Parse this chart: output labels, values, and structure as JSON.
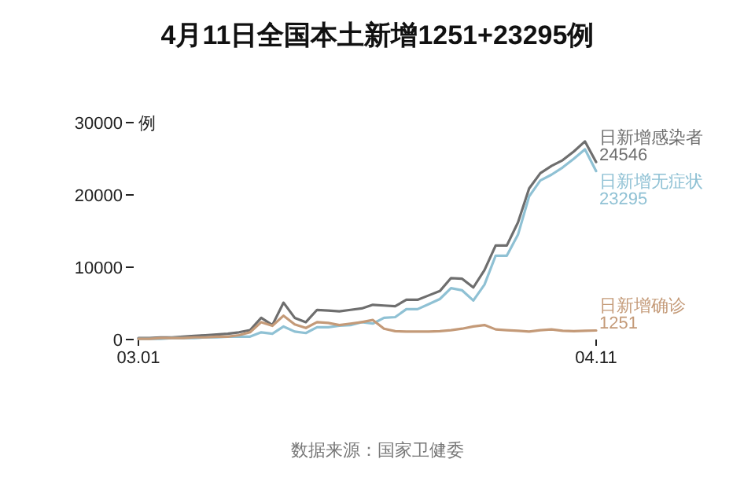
{
  "chart_data": {
    "type": "line",
    "title": "4月11日全国本土新增1251+23295例",
    "ylabel": "例",
    "annotations": [
      "数据来源：国家卫健委"
    ],
    "x": [
      "--03-01",
      "--03-02",
      "--03-03",
      "--03-04",
      "--03-05",
      "--03-06",
      "--03-07",
      "--03-08",
      "--03-09",
      "--03-10",
      "--03-11",
      "--03-12",
      "--03-13",
      "--03-14",
      "--03-15",
      "--03-16",
      "--03-17",
      "--03-18",
      "--03-19",
      "--03-20",
      "--03-21",
      "--03-22",
      "--03-23",
      "--03-24",
      "--03-25",
      "--03-26",
      "--03-27",
      "--03-28",
      "--03-29",
      "--03-30",
      "--03-31",
      "--04-01",
      "--04-02",
      "--04-03",
      "--04-04",
      "--04-05",
      "--04-06",
      "--04-07",
      "--04-08",
      "--04-09",
      "--04-10",
      "--04-11"
    ],
    "xlim": [
      "--03-01",
      "--04-11"
    ],
    "xticks": [
      {
        "value": "--03-01",
        "label": "03.01"
      },
      {
        "value": "--04-11",
        "label": "04.11"
      }
    ],
    "ylim": [
      0,
      30000
    ],
    "yticks": [
      0,
      10000,
      20000,
      30000
    ],
    "grid": false,
    "line_style": "solid",
    "marker": "none",
    "series": [
      {
        "name": "日新增感染者",
        "color": "#6e6e6e",
        "values": [
          200,
          200,
          300,
          300,
          400,
          500,
          600,
          700,
          800,
          1000,
          1300,
          3000,
          2000,
          5100,
          3000,
          2400,
          4100,
          4000,
          3900,
          4100,
          4300,
          4800,
          4700,
          4600,
          5500,
          5500,
          6100,
          6700,
          8500,
          8400,
          7200,
          9600,
          13000,
          13000,
          16200,
          20900,
          23000,
          24000,
          24800,
          26000,
          27400,
          24546
        ],
        "value_labels": [
          null,
          null,
          null,
          null,
          null,
          null,
          null,
          null,
          null,
          null,
          null,
          null,
          null,
          null,
          null,
          null,
          null,
          null,
          null,
          null,
          null,
          null,
          null,
          null,
          null,
          null,
          null,
          null,
          null,
          null,
          null,
          null,
          null,
          null,
          null,
          null,
          null,
          null,
          null,
          null,
          null,
          "24546"
        ]
      },
      {
        "name": "日新增无症状",
        "color": "#8fc1d4",
        "values": [
          100,
          100,
          100,
          200,
          200,
          200,
          300,
          300,
          400,
          400,
          400,
          1000,
          800,
          1800,
          1100,
          900,
          1700,
          1700,
          1900,
          2000,
          2400,
          2200,
          3000,
          3100,
          4200,
          4200,
          4900,
          5600,
          7100,
          6800,
          5400,
          7600,
          11600,
          11600,
          14500,
          19800,
          22000,
          22800,
          23800,
          25000,
          26300,
          23295
        ],
        "value_labels": [
          null,
          null,
          null,
          null,
          null,
          null,
          null,
          null,
          null,
          null,
          null,
          null,
          null,
          null,
          null,
          null,
          null,
          null,
          null,
          null,
          null,
          null,
          null,
          null,
          null,
          null,
          null,
          null,
          null,
          null,
          null,
          null,
          null,
          null,
          null,
          null,
          null,
          null,
          null,
          null,
          null,
          "23295"
        ]
      },
      {
        "name": "日新增确诊",
        "color": "#c49a78",
        "values": [
          100,
          100,
          200,
          200,
          200,
          300,
          300,
          400,
          400,
          600,
          1000,
          2400,
          1900,
          3300,
          2100,
          1600,
          2400,
          2300,
          2000,
          2200,
          2400,
          2700,
          1500,
          1150,
          1100,
          1100,
          1100,
          1150,
          1300,
          1500,
          1800,
          2000,
          1400,
          1300,
          1200,
          1100,
          1300,
          1400,
          1200,
          1150,
          1200,
          1251
        ],
        "value_labels": [
          null,
          null,
          null,
          null,
          null,
          null,
          null,
          null,
          null,
          null,
          null,
          null,
          null,
          null,
          null,
          null,
          null,
          null,
          null,
          null,
          null,
          null,
          null,
          null,
          null,
          null,
          null,
          null,
          null,
          null,
          null,
          null,
          null,
          null,
          null,
          null,
          null,
          null,
          null,
          null,
          null,
          "1251"
        ]
      }
    ]
  }
}
